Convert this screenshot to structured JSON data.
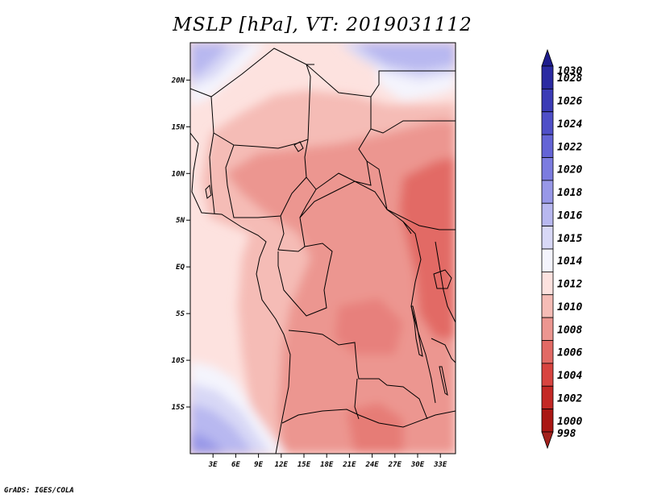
{
  "title": "MSLP [hPa], VT: 2019031112",
  "credit": "GrADS: IGES/COLA",
  "map": {
    "variable": "MSLP",
    "units": "hPa",
    "valid_time": "2019031112",
    "lon_range": [
      0,
      35
    ],
    "lat_range": [
      -20,
      24
    ],
    "lat_ticks": [
      {
        "value": 20,
        "label": "20N"
      },
      {
        "value": 15,
        "label": "15N"
      },
      {
        "value": 10,
        "label": "10N"
      },
      {
        "value": 5,
        "label": "5N"
      },
      {
        "value": 0,
        "label": "EQ"
      },
      {
        "value": -5,
        "label": "5S"
      },
      {
        "value": -10,
        "label": "10S"
      },
      {
        "value": -15,
        "label": "15S"
      }
    ],
    "lon_ticks": [
      {
        "value": 3,
        "label": "3E"
      },
      {
        "value": 6,
        "label": "6E"
      },
      {
        "value": 9,
        "label": "9E"
      },
      {
        "value": 12,
        "label": "12E"
      },
      {
        "value": 15,
        "label": "15E"
      },
      {
        "value": 18,
        "label": "18E"
      },
      {
        "value": 21,
        "label": "21E"
      },
      {
        "value": 24,
        "label": "24E"
      },
      {
        "value": 27,
        "label": "27E"
      },
      {
        "value": 30,
        "label": "30E"
      },
      {
        "value": 33,
        "label": "33E"
      }
    ]
  },
  "colorbar": {
    "levels": [
      "1030",
      "1028",
      "1026",
      "1024",
      "1022",
      "1020",
      "1018",
      "1016",
      "1015",
      "1014",
      "1012",
      "1010",
      "1008",
      "1006",
      "1004",
      "1002",
      "1000",
      "998"
    ],
    "colors": [
      "#1e1c8c",
      "#2b2aa2",
      "#3b3bb6",
      "#4f4fc8",
      "#6464d6",
      "#7c7ce0",
      "#9898e8",
      "#b8b8f0",
      "#d8d8f6",
      "#f4f4fd",
      "#fde2df",
      "#f5bcb6",
      "#ec9690",
      "#e26a65",
      "#d84440",
      "#c42825",
      "#aa1714",
      "#a3211c"
    ]
  }
}
